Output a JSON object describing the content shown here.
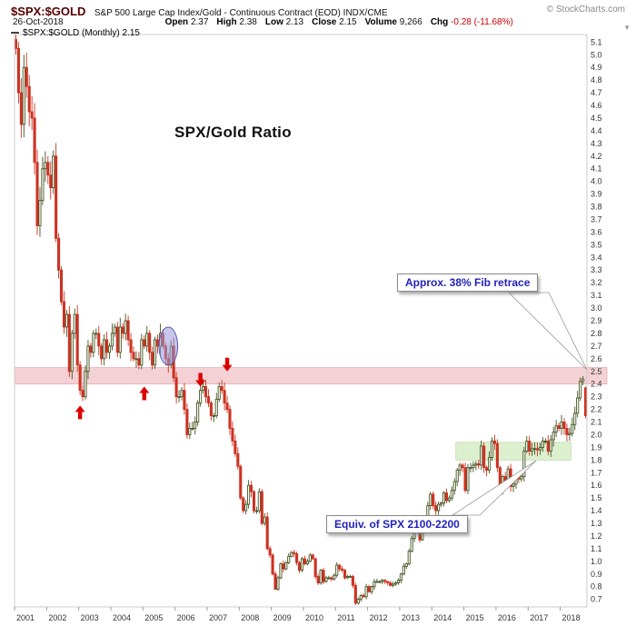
{
  "header": {
    "symbol": "$SPX:$GOLD",
    "description": "S&P 500 Large Cap Index/Gold - Continuous Contract (EOD) INDX/CME",
    "copyright": "© StockCharts.com",
    "date": "26-Oct-2018",
    "quote": {
      "open": {
        "label": "Open",
        "value": "2.37"
      },
      "high": {
        "label": "High",
        "value": "2.38"
      },
      "low": {
        "label": "Low",
        "value": "2.13"
      },
      "close": {
        "label": "Close",
        "value": "2.15"
      },
      "volume": {
        "label": "Volume",
        "value": "9,266"
      },
      "chg": {
        "label": "Chg",
        "value": "-0.28 (-11.68%)"
      }
    }
  },
  "icons": {
    "chevron_down": "▼"
  },
  "legend": {
    "label": "$SPX:$GOLD (Monthly) 2.15"
  },
  "chart_data": {
    "type": "candlestick",
    "title_annotation": "SPX/Gold Ratio",
    "start_year": 2001,
    "x_tick_labels": [
      "2001",
      "2002",
      "2003",
      "2004",
      "2005",
      "2006",
      "2007",
      "2008",
      "2009",
      "2010",
      "2011",
      "2012",
      "2013",
      "2014",
      "2015",
      "2016",
      "2017",
      "2018"
    ],
    "ylim": [
      0.64,
      5.16
    ],
    "y_tick_min": 0.7,
    "y_tick_max": 5.1,
    "y_tick_step": 0.1,
    "first_open": 5.12,
    "closes": [
      5.05,
      4.7,
      4.45,
      4.9,
      4.75,
      4.55,
      4.5,
      4.15,
      3.65,
      3.85,
      4.1,
      4.15,
      4.05,
      3.95,
      4.2,
      3.55,
      3.3,
      3.05,
      2.85,
      2.95,
      2.5,
      2.8,
      2.95,
      2.55,
      2.35,
      2.3,
      2.5,
      2.7,
      2.65,
      2.8,
      2.8,
      2.7,
      2.6,
      2.75,
      2.65,
      2.7,
      2.8,
      2.85,
      2.65,
      2.85,
      2.8,
      2.9,
      2.75,
      2.65,
      2.6,
      2.6,
      2.55,
      2.75,
      2.7,
      2.8,
      2.65,
      2.55,
      2.75,
      2.7,
      2.8,
      2.7,
      2.6,
      2.55,
      2.7,
      2.45,
      2.3,
      2.3,
      2.35,
      2.2,
      2.0,
      2.05,
      2.05,
      2.1,
      2.25,
      2.35,
      2.38,
      2.3,
      2.25,
      2.15,
      2.15,
      2.28,
      2.38,
      2.35,
      2.25,
      2.2,
      2.05,
      1.95,
      1.85,
      1.75,
      1.5,
      1.4,
      1.45,
      1.6,
      1.55,
      1.4,
      1.4,
      1.55,
      1.3,
      1.35,
      1.1,
      1.05,
      0.9,
      0.78,
      0.87,
      0.98,
      0.94,
      0.99,
      1.04,
      1.07,
      1.06,
      0.99,
      0.93,
      1.02,
      0.98,
      1.0,
      1.05,
      1.02,
      0.88,
      0.83,
      0.93,
      0.84,
      0.87,
      0.87,
      0.86,
      0.89,
      0.97,
      0.94,
      0.93,
      0.87,
      0.88,
      0.88,
      0.81,
      0.67,
      0.7,
      0.73,
      0.72,
      0.8,
      0.76,
      0.8,
      0.84,
      0.84,
      0.84,
      0.85,
      0.84,
      0.83,
      0.81,
      0.82,
      0.83,
      0.85,
      0.9,
      0.96,
      0.98,
      1.08,
      1.18,
      1.31,
      1.28,
      1.17,
      1.27,
      1.33,
      1.44,
      1.53,
      1.44,
      1.4,
      1.45,
      1.46,
      1.54,
      1.48,
      1.5,
      1.56,
      1.63,
      1.72,
      1.76,
      1.74,
      1.56,
      1.74,
      1.74,
      1.76,
      1.77,
      1.76,
      1.91,
      1.74,
      1.72,
      1.82,
      1.95,
      1.93,
      1.74,
      1.56,
      1.67,
      1.6,
      1.73,
      1.59,
      1.61,
      1.66,
      1.65,
      1.67,
      1.87,
      1.95,
      1.87,
      1.89,
      1.89,
      1.88,
      1.9,
      1.95,
      1.95,
      1.87,
      1.96,
      2.02,
      2.07,
      2.05,
      2.1,
      2.05,
      2.0,
      2.01,
      2.08,
      2.17,
      2.29,
      2.42,
      2.44,
      2.15
    ],
    "last_ohlc": {
      "open": 2.37,
      "high": 2.38,
      "low": 2.13,
      "close": 2.15
    },
    "band": {
      "from": 2.4,
      "to": 2.53
    },
    "zone": {
      "x_from_month": "2014-10",
      "x_to_month": "2018-04",
      "from": 1.8,
      "to": 1.94
    },
    "ellipse": {
      "month": "2005-10",
      "value": 2.7,
      "rx_months": 3.5,
      "ry_value": 0.15
    },
    "markers": [
      {
        "type": "up-arrow",
        "month": "2003-01",
        "value": 2.23
      },
      {
        "type": "up-arrow",
        "month": "2005-01",
        "value": 2.38
      },
      {
        "type": "down-arrow",
        "month": "2006-10",
        "value": 2.38
      },
      {
        "type": "down-arrow",
        "month": "2007-08",
        "value": 2.5
      }
    ],
    "annotations": [
      {
        "id": "fib",
        "text": "Approx. 38% Fib retrace"
      },
      {
        "id": "equiv",
        "text": "Equiv. of SPX 2100-2200"
      }
    ],
    "colors": {
      "up": "#445522",
      "up_fill": "#ffffff",
      "down": "#cc3322",
      "band": "#f2c9cc",
      "band_border": "#e3a7ad",
      "zone": "#d8eecb",
      "zone_border": "#b7d6a2",
      "ellipse": "#9898d8",
      "ellipse_border": "#5a5ab0",
      "arrow": "#dd0000",
      "annotation_text": "#2222bb",
      "chg_negative": "#cc0000"
    }
  }
}
